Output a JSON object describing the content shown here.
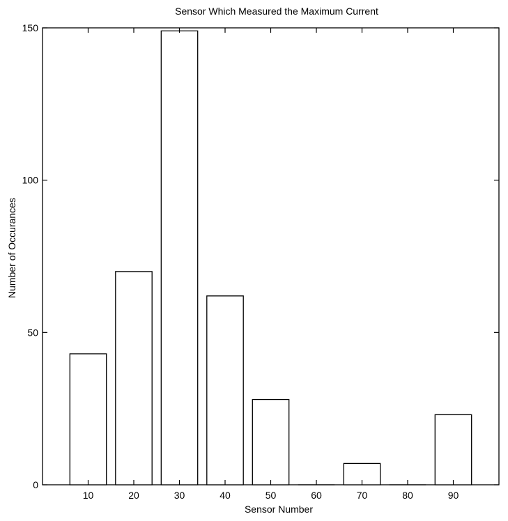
{
  "chart_data": {
    "type": "bar",
    "title": "Sensor Which Measured the Maximum Current",
    "xlabel": "Sensor Number",
    "ylabel": "Number of Occurances",
    "xlim": [
      0,
      100
    ],
    "ylim": [
      0,
      150
    ],
    "xticks": [
      10,
      20,
      30,
      40,
      50,
      60,
      70,
      80,
      90
    ],
    "yticks": [
      0,
      50,
      100,
      150
    ],
    "grid": false,
    "bar_width": 8,
    "x": [
      10,
      20,
      30,
      40,
      50,
      60,
      70,
      80,
      90
    ],
    "values": [
      43,
      70,
      149,
      62,
      28,
      0,
      7,
      0,
      23
    ]
  }
}
